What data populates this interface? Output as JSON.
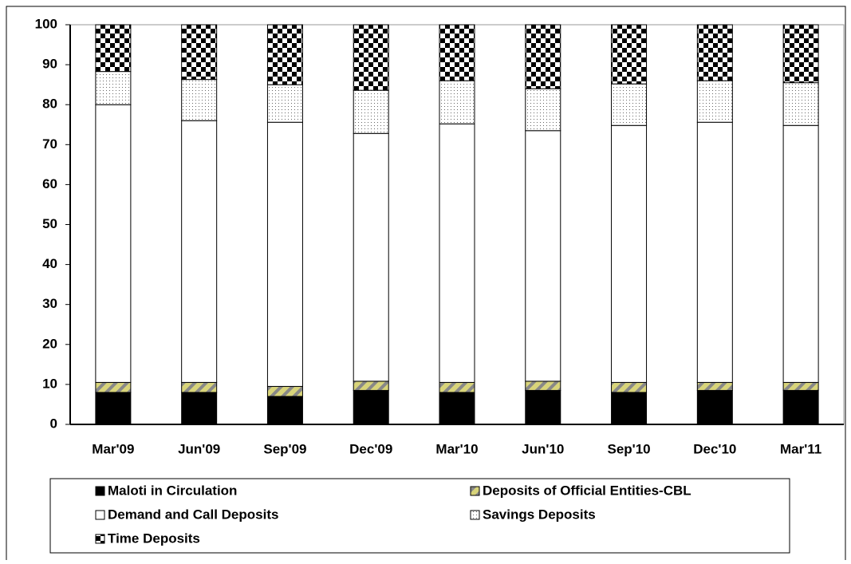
{
  "chart_data": {
    "type": "stacked-bar",
    "categories": [
      "Mar'09",
      "Jun'09",
      "Sep'09",
      "Dec'09",
      "Mar'10",
      "Jun'10",
      "Sep'10",
      "Dec'10",
      "Mar'11"
    ],
    "series": [
      {
        "name": "Maloti  in  Circulation",
        "color": "#000000",
        "pattern": "solid",
        "values": [
          8,
          8,
          7,
          8.5,
          8,
          8.5,
          8,
          8.5,
          8.5
        ]
      },
      {
        "name": "Deposits of Official Entities-CBL",
        "color": "#d8d47a",
        "pattern": "diagonal-stripes",
        "values": [
          2.5,
          2.5,
          2.5,
          2.3,
          2.5,
          2.3,
          2.5,
          2,
          2
        ]
      },
      {
        "name": "Demand  and Call Deposits",
        "color": "#ffffff",
        "pattern": "solid",
        "values": [
          69.5,
          65.5,
          66.1,
          62,
          64.7,
          62.7,
          64.3,
          65.1,
          64.3
        ]
      },
      {
        "name": "Savings  Deposits",
        "color": "#ffffff",
        "pattern": "dots",
        "values": [
          8.3,
          10.3,
          9.4,
          10.8,
          10.8,
          10.5,
          10.4,
          10.4,
          10.7
        ]
      },
      {
        "name": "Time  Deposits",
        "color": "#000000",
        "pattern": "checker",
        "values": [
          11.7,
          13.7,
          15,
          16.4,
          14,
          16,
          14.8,
          14,
          14.5
        ]
      }
    ],
    "ylim": [
      0,
      100
    ],
    "yticks": [
      0,
      10,
      20,
      30,
      40,
      50,
      60,
      70,
      80,
      90,
      100
    ],
    "grid": false
  }
}
